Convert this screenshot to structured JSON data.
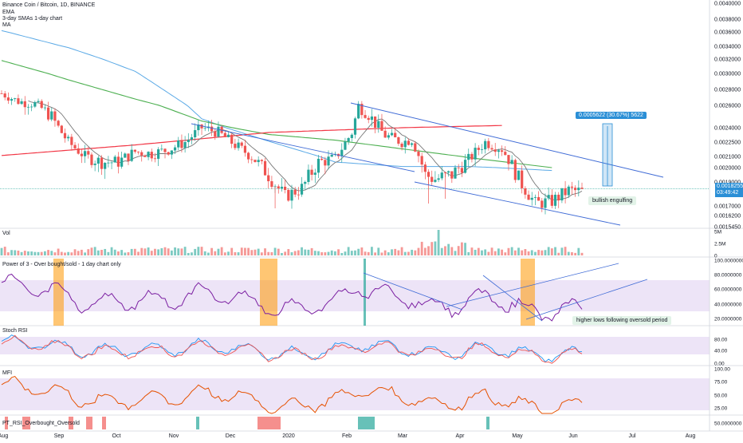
{
  "legend": {
    "symbol": "Binance Coin / Bitcoin, 1D, BINANCE",
    "items": [
      "EMA",
      "3-day SMAs 1-day chart",
      "MA"
    ]
  },
  "panes": {
    "volume": "Vol",
    "power3": "Power of 3 - Over bought/sold - 1 day chart only",
    "stoch": "Stoch RSI",
    "mfi": "MFI",
    "pt": "PT_RSI_Overbought_Oversold"
  },
  "annotations": {
    "measure": "0.0005622 (30.67%) 5622",
    "bullish": "bullish engulfing",
    "higher_lows": "higher lows following oversold period"
  },
  "price_tag": {
    "value": "0.0018255",
    "countdown": "03:49:42"
  },
  "colors": {
    "up": "#26a69a",
    "down": "#ef5350",
    "ema": "#f23645",
    "sma": "#4caf50",
    "ma_blue": "#5aa9e6",
    "ma_grey": "#777777",
    "trend": "#3f6bd6",
    "rsi": "#7b1fa2",
    "mfi": "#e65100",
    "stoch_k": "#2196f3",
    "stoch_d": "#ef5350",
    "band": "#ede4f7",
    "accent": "#2b8fd6"
  },
  "chart_data": {
    "type": "candlestick",
    "x_axis": {
      "labels": [
        "Aug",
        "Sep",
        "Oct",
        "Nov",
        "Dec",
        "2020",
        "Feb",
        "Mar",
        "Apr",
        "May",
        "Jun",
        "Jul",
        "Aug"
      ]
    },
    "price_axis": {
      "ticks": [
        "0.0040000",
        "0.0038000",
        "0.0036000",
        "0.0034000",
        "0.0032000",
        "0.0030000",
        "0.0028000",
        "0.0026000",
        "0.0024000",
        "0.0022500",
        "0.0021000",
        "0.0020000",
        "0.0019000",
        "0.0017000",
        "0.0016200",
        "0.0015450"
      ]
    },
    "price_series_anchors": [
      [
        0,
        0.00275
      ],
      [
        5,
        0.00265
      ],
      [
        10,
        0.00262
      ],
      [
        15,
        0.0025
      ],
      [
        20,
        0.00225
      ],
      [
        25,
        0.0021
      ],
      [
        30,
        0.00205
      ],
      [
        35,
        0.00205
      ],
      [
        40,
        0.00215
      ],
      [
        45,
        0.00213
      ],
      [
        50,
        0.00217
      ],
      [
        55,
        0.00225
      ],
      [
        60,
        0.0024
      ],
      [
        65,
        0.00235
      ],
      [
        70,
        0.00222
      ],
      [
        75,
        0.0021
      ],
      [
        80,
        0.00195
      ],
      [
        85,
        0.00178
      ],
      [
        90,
        0.00185
      ],
      [
        95,
        0.00205
      ],
      [
        100,
        0.00208
      ],
      [
        105,
        0.00235
      ],
      [
        107,
        0.0026
      ],
      [
        110,
        0.00252
      ],
      [
        115,
        0.00232
      ],
      [
        120,
        0.00225
      ],
      [
        123,
        0.00228
      ],
      [
        127,
        0.00195
      ],
      [
        130,
        0.00192
      ],
      [
        135,
        0.00195
      ],
      [
        140,
        0.00207
      ],
      [
        145,
        0.00225
      ],
      [
        150,
        0.00218
      ],
      [
        155,
        0.00192
      ],
      [
        160,
        0.00172
      ],
      [
        165,
        0.00174
      ],
      [
        170,
        0.00183
      ],
      [
        174,
        0.00182
      ]
    ],
    "ema": [
      [
        0,
        0.00211
      ],
      [
        40,
        0.00222
      ],
      [
        80,
        0.00235
      ],
      [
        120,
        0.0024
      ],
      [
        150,
        0.00242
      ]
    ],
    "sma": [
      [
        0,
        0.00318
      ],
      [
        20,
        0.00292
      ],
      [
        40,
        0.00268
      ],
      [
        60,
        0.00246
      ],
      [
        80,
        0.00233
      ],
      [
        100,
        0.00227
      ],
      [
        120,
        0.00218
      ],
      [
        140,
        0.00209
      ],
      [
        165,
        0.002
      ]
    ],
    "ma_blue": [
      [
        0,
        0.00362
      ],
      [
        20,
        0.00338
      ],
      [
        40,
        0.00303
      ],
      [
        60,
        0.00248
      ],
      [
        80,
        0.00226
      ],
      [
        100,
        0.00205
      ],
      [
        120,
        0.00201
      ],
      [
        140,
        0.00201
      ],
      [
        165,
        0.00198
      ]
    ],
    "volume_ylabels": [
      "5M",
      "2.5M",
      "0"
    ],
    "rsi_ylabels": [
      "100.0000000",
      "80.0000000",
      "60.0000000",
      "40.0000000",
      "20.0000000"
    ],
    "stoch_ylabels": [
      "80.00",
      "40.00",
      "0.00"
    ],
    "mfi_ylabels": [
      "100.00",
      "75.00",
      "50.00",
      "25.00"
    ],
    "pt_ylabels": [
      "50.0000000"
    ]
  }
}
